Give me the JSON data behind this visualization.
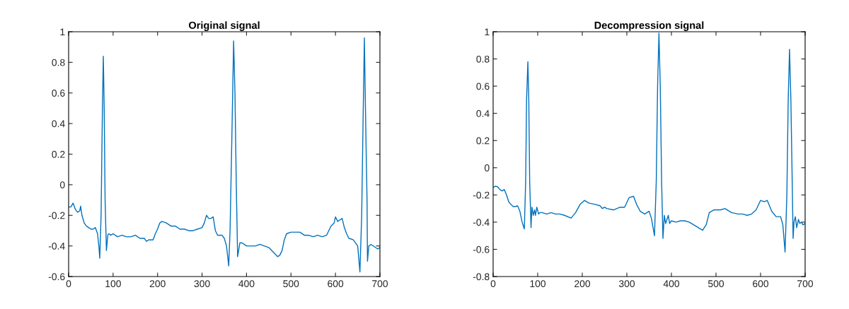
{
  "chart_data": [
    {
      "type": "line",
      "title": "Original signal",
      "xlim": [
        0,
        700
      ],
      "xticks": [
        0,
        100,
        200,
        300,
        400,
        500,
        600,
        700
      ],
      "ylim": [
        -0.6,
        1
      ],
      "yticks": [
        -0.6,
        -0.4,
        -0.2,
        0,
        0.2,
        0.4,
        0.6,
        0.8,
        1
      ],
      "grid": false,
      "x": [
        0,
        5,
        10,
        15,
        20,
        25,
        27,
        30,
        35,
        40,
        45,
        50,
        55,
        60,
        65,
        68,
        70,
        73,
        76,
        78,
        80,
        82,
        85,
        88,
        90,
        95,
        100,
        110,
        120,
        130,
        140,
        150,
        160,
        170,
        175,
        180,
        190,
        195,
        200,
        205,
        210,
        220,
        230,
        240,
        250,
        260,
        270,
        280,
        290,
        300,
        305,
        310,
        315,
        320,
        325,
        330,
        335,
        340,
        345,
        350,
        355,
        360,
        363,
        367,
        371,
        374,
        377,
        380,
        385,
        390,
        400,
        410,
        420,
        430,
        440,
        450,
        460,
        470,
        475,
        480,
        485,
        490,
        500,
        510,
        520,
        530,
        540,
        550,
        560,
        570,
        580,
        585,
        590,
        597,
        600,
        605,
        610,
        615,
        620,
        625,
        630,
        640,
        650,
        655,
        659,
        662,
        665,
        668,
        671,
        672,
        675,
        680,
        690,
        695,
        700
      ],
      "series": [
        {
          "color": "#0072bd",
          "values": [
            -0.145,
            -0.145,
            -0.12,
            -0.16,
            -0.18,
            -0.17,
            -0.14,
            -0.2,
            -0.25,
            -0.27,
            -0.28,
            -0.29,
            -0.29,
            -0.28,
            -0.32,
            -0.4,
            -0.48,
            -0.2,
            0.5,
            0.84,
            0.5,
            -0.1,
            -0.43,
            -0.33,
            -0.32,
            -0.33,
            -0.32,
            -0.34,
            -0.33,
            -0.34,
            -0.34,
            -0.33,
            -0.35,
            -0.35,
            -0.37,
            -0.36,
            -0.36,
            -0.32,
            -0.29,
            -0.25,
            -0.24,
            -0.25,
            -0.27,
            -0.27,
            -0.29,
            -0.29,
            -0.3,
            -0.3,
            -0.29,
            -0.28,
            -0.25,
            -0.2,
            -0.22,
            -0.22,
            -0.21,
            -0.3,
            -0.33,
            -0.33,
            -0.33,
            -0.35,
            -0.4,
            -0.53,
            -0.3,
            0.3,
            0.94,
            0.6,
            0.0,
            -0.47,
            -0.38,
            -0.38,
            -0.4,
            -0.4,
            -0.4,
            -0.39,
            -0.4,
            -0.41,
            -0.44,
            -0.47,
            -0.46,
            -0.43,
            -0.36,
            -0.32,
            -0.31,
            -0.31,
            -0.31,
            -0.33,
            -0.33,
            -0.34,
            -0.33,
            -0.34,
            -0.33,
            -0.3,
            -0.27,
            -0.25,
            -0.21,
            -0.24,
            -0.23,
            -0.22,
            -0.28,
            -0.32,
            -0.35,
            -0.36,
            -0.4,
            -0.57,
            -0.2,
            0.4,
            0.96,
            0.4,
            -0.1,
            -0.5,
            -0.4,
            -0.39,
            -0.41,
            -0.42,
            -0.41
          ]
        }
      ]
    },
    {
      "type": "line",
      "title": "Decompression signal",
      "xlim": [
        0,
        700
      ],
      "xticks": [
        0,
        100,
        200,
        300,
        400,
        500,
        600,
        700
      ],
      "ylim": [
        -0.8,
        1
      ],
      "yticks": [
        -0.8,
        -0.6,
        -0.4,
        -0.2,
        0,
        0.2,
        0.4,
        0.6,
        0.8,
        1
      ],
      "grid": false,
      "x": [
        0,
        5,
        10,
        15,
        20,
        25,
        30,
        35,
        40,
        45,
        50,
        55,
        60,
        65,
        70,
        73,
        75,
        78,
        80,
        82,
        85,
        87,
        90,
        93,
        95,
        98,
        102,
        105,
        110,
        120,
        130,
        140,
        150,
        160,
        175,
        185,
        195,
        205,
        215,
        230,
        240,
        245,
        250,
        255,
        270,
        285,
        295,
        305,
        315,
        322,
        330,
        340,
        350,
        355,
        362,
        366,
        369,
        372,
        375,
        378,
        381,
        384,
        387,
        390,
        393,
        396,
        400,
        410,
        420,
        430,
        440,
        455,
        470,
        478,
        485,
        495,
        510,
        520,
        535,
        550,
        560,
        570,
        580,
        590,
        600,
        608,
        615,
        625,
        635,
        645,
        650,
        655,
        659,
        662,
        665,
        668,
        671,
        673,
        675,
        678,
        681,
        685,
        688,
        692,
        695,
        700
      ],
      "series": [
        {
          "color": "#0072bd",
          "values": [
            -0.145,
            -0.135,
            -0.14,
            -0.16,
            -0.17,
            -0.16,
            -0.2,
            -0.25,
            -0.27,
            -0.285,
            -0.285,
            -0.28,
            -0.32,
            -0.4,
            -0.45,
            -0.1,
            0.5,
            0.78,
            0.5,
            -0.1,
            -0.44,
            -0.29,
            -0.35,
            -0.31,
            -0.35,
            -0.29,
            -0.34,
            -0.33,
            -0.33,
            -0.34,
            -0.33,
            -0.34,
            -0.34,
            -0.35,
            -0.37,
            -0.33,
            -0.27,
            -0.24,
            -0.26,
            -0.27,
            -0.28,
            -0.3,
            -0.29,
            -0.3,
            -0.31,
            -0.29,
            -0.29,
            -0.22,
            -0.21,
            -0.27,
            -0.32,
            -0.34,
            -0.32,
            -0.37,
            -0.5,
            -0.1,
            0.6,
            0.99,
            0.6,
            -0.1,
            -0.52,
            -0.35,
            -0.41,
            -0.38,
            -0.35,
            -0.41,
            -0.39,
            -0.4,
            -0.39,
            -0.39,
            -0.4,
            -0.43,
            -0.46,
            -0.42,
            -0.33,
            -0.31,
            -0.31,
            -0.3,
            -0.33,
            -0.34,
            -0.34,
            -0.35,
            -0.34,
            -0.31,
            -0.24,
            -0.25,
            -0.24,
            -0.32,
            -0.36,
            -0.36,
            -0.42,
            -0.62,
            -0.2,
            0.5,
            0.87,
            0.5,
            -0.1,
            -0.52,
            -0.4,
            -0.36,
            -0.44,
            -0.38,
            -0.41,
            -0.4,
            -0.42,
            -0.41
          ]
        }
      ]
    }
  ]
}
